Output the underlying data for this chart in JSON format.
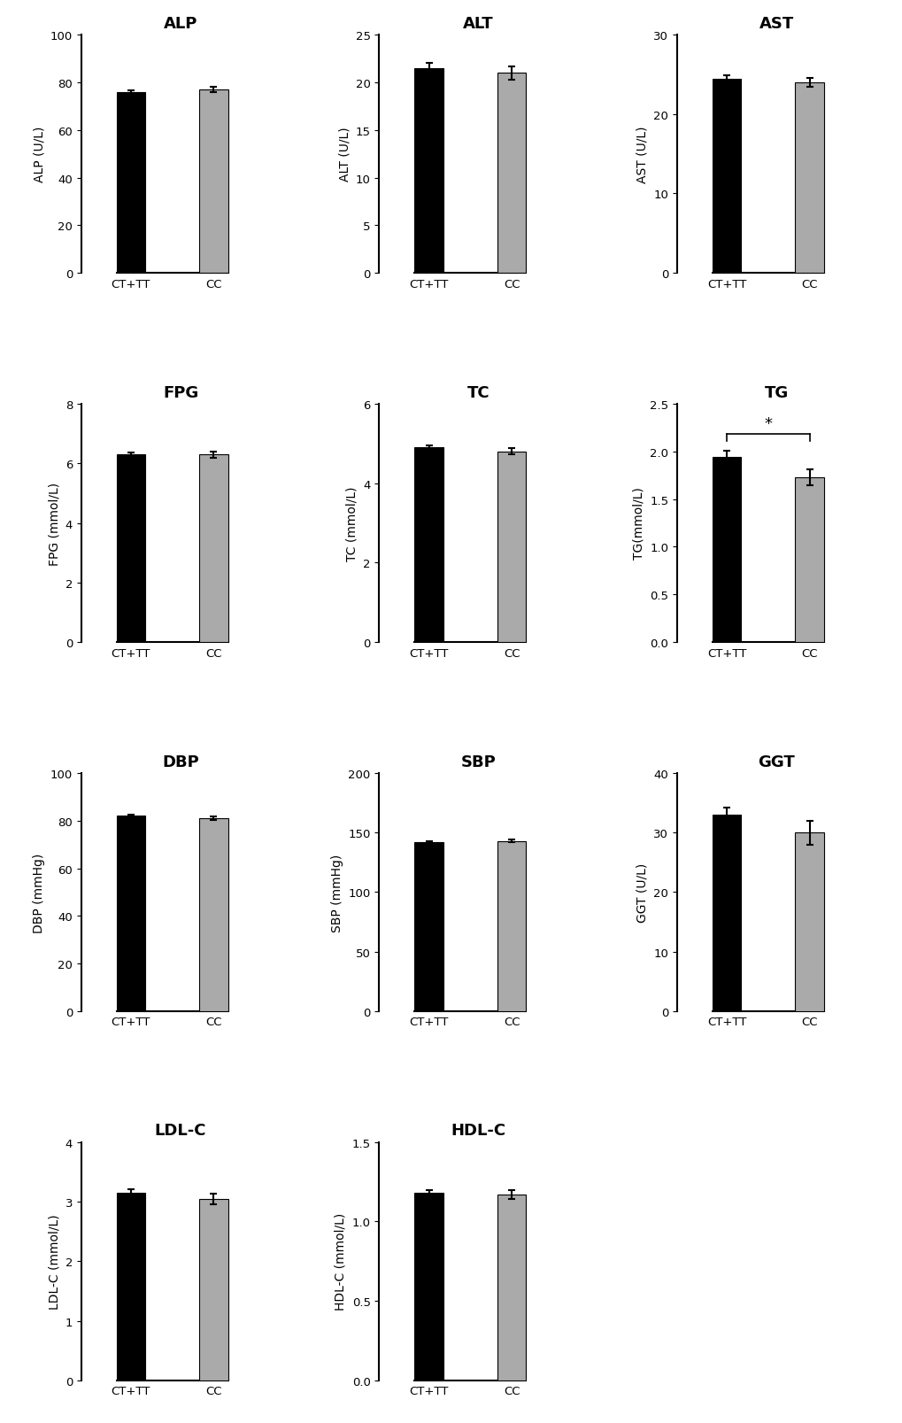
{
  "panels": [
    {
      "title": "ALP",
      "ylabel": "ALP (U/L)",
      "ylim": [
        0,
        100
      ],
      "yticks": [
        0,
        20,
        40,
        60,
        80,
        100
      ],
      "ct_tt_val": 76.0,
      "cc_val": 77.0,
      "ct_tt_err": 0.8,
      "cc_err": 1.2,
      "significance": null
    },
    {
      "title": "ALT",
      "ylabel": "ALT (U/L)",
      "ylim": [
        0,
        25
      ],
      "yticks": [
        0,
        5,
        10,
        15,
        20,
        25
      ],
      "ct_tt_val": 21.5,
      "cc_val": 21.0,
      "ct_tt_err": 0.5,
      "cc_err": 0.7,
      "significance": null
    },
    {
      "title": "AST",
      "ylabel": "AST (U/L)",
      "ylim": [
        0,
        30
      ],
      "yticks": [
        0,
        10,
        20,
        30
      ],
      "ct_tt_val": 24.5,
      "cc_val": 24.0,
      "ct_tt_err": 0.4,
      "cc_err": 0.6,
      "significance": null
    },
    {
      "title": "FPG",
      "ylabel": "FPG (mmol/L)",
      "ylim": [
        0,
        8
      ],
      "yticks": [
        0,
        2,
        4,
        6,
        8
      ],
      "ct_tt_val": 6.3,
      "cc_val": 6.3,
      "ct_tt_err": 0.07,
      "cc_err": 0.1,
      "significance": null
    },
    {
      "title": "TC",
      "ylabel": "TC (mmol/L)",
      "ylim": [
        0,
        6
      ],
      "yticks": [
        0,
        2,
        4,
        6
      ],
      "ct_tt_val": 4.9,
      "cc_val": 4.8,
      "ct_tt_err": 0.05,
      "cc_err": 0.08,
      "significance": null
    },
    {
      "title": "TG",
      "ylabel": "TG(mmol/L)",
      "ylim": [
        0.0,
        2.5
      ],
      "yticks": [
        0.0,
        0.5,
        1.0,
        1.5,
        2.0,
        2.5
      ],
      "ct_tt_val": 1.94,
      "cc_val": 1.73,
      "ct_tt_err": 0.07,
      "cc_err": 0.08,
      "significance": "*"
    },
    {
      "title": "DBP",
      "ylabel": "DBP (mmHg)",
      "ylim": [
        0,
        100
      ],
      "yticks": [
        0,
        20,
        40,
        60,
        80,
        100
      ],
      "ct_tt_val": 82.0,
      "cc_val": 81.0,
      "ct_tt_err": 0.4,
      "cc_err": 0.7,
      "significance": null
    },
    {
      "title": "SBP",
      "ylabel": "SBP (mmHg)",
      "ylim": [
        0,
        200
      ],
      "yticks": [
        0,
        50,
        100,
        150,
        200
      ],
      "ct_tt_val": 142.0,
      "cc_val": 143.0,
      "ct_tt_err": 0.8,
      "cc_err": 1.2,
      "significance": null
    },
    {
      "title": "GGT",
      "ylabel": "GGT (U/L)",
      "ylim": [
        0,
        40
      ],
      "yticks": [
        0,
        10,
        20,
        30,
        40
      ],
      "ct_tt_val": 33.0,
      "cc_val": 30.0,
      "ct_tt_err": 1.2,
      "cc_err": 2.0,
      "significance": null
    },
    {
      "title": "LDL-C",
      "ylabel": "LDL-C (mmol/L)",
      "ylim": [
        0,
        4
      ],
      "yticks": [
        0,
        1,
        2,
        3,
        4
      ],
      "ct_tt_val": 3.15,
      "cc_val": 3.05,
      "ct_tt_err": 0.06,
      "cc_err": 0.09,
      "significance": null
    },
    {
      "title": "HDL-C",
      "ylabel": "HDL-C (mmol/L)",
      "ylim": [
        0.0,
        1.5
      ],
      "yticks": [
        0.0,
        0.5,
        1.0,
        1.5
      ],
      "ct_tt_val": 1.18,
      "cc_val": 1.17,
      "ct_tt_err": 0.02,
      "cc_err": 0.03,
      "significance": null
    }
  ],
  "bar_colors": [
    "#000000",
    "#aaaaaa"
  ],
  "categories": [
    "CT+TT",
    "CC"
  ],
  "bar_width": 0.35,
  "x_positions": [
    1.0,
    2.0
  ],
  "xlim": [
    0.4,
    2.8
  ],
  "background_color": "#ffffff",
  "title_fontsize": 13,
  "label_fontsize": 10,
  "tick_fontsize": 9.5
}
